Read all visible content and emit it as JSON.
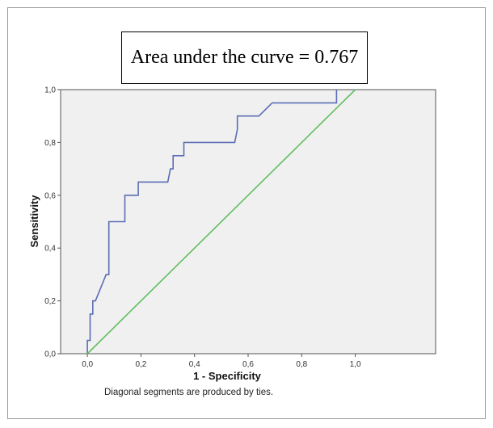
{
  "chart_data": {
    "type": "line",
    "annotation": "Area under the curve = 0.767",
    "xlabel": "1 - Specificity",
    "ylabel": "Sensitivity",
    "xlim": [
      -0.1,
      1.3
    ],
    "ylim": [
      0,
      1
    ],
    "xticks": [
      "0,0",
      "0,2",
      "0,4",
      "0,6",
      "0,8",
      "1,0"
    ],
    "yticks": [
      "0,0",
      "0,2",
      "0,4",
      "0,6",
      "0,8",
      "1,0"
    ],
    "footnote": "Diagonal segments are produced by ties.",
    "series": [
      {
        "color": "#5b6db5",
        "x": [
          0.0,
          0.0,
          0.01,
          0.01,
          0.02,
          0.02,
          0.03,
          0.03,
          0.05,
          0.07,
          0.08,
          0.08,
          0.14,
          0.14,
          0.19,
          0.19,
          0.3,
          0.31,
          0.32,
          0.32,
          0.36,
          0.36,
          0.55,
          0.56,
          0.56,
          0.64,
          0.69,
          0.69,
          0.91,
          0.93,
          0.93
        ],
        "y": [
          0.0,
          0.05,
          0.05,
          0.15,
          0.15,
          0.2,
          0.2,
          0.2,
          0.25,
          0.3,
          0.3,
          0.5,
          0.5,
          0.6,
          0.6,
          0.65,
          0.65,
          0.7,
          0.7,
          0.75,
          0.75,
          0.8,
          0.8,
          0.85,
          0.9,
          0.9,
          0.95,
          0.95,
          0.95,
          0.95,
          1.0
        ]
      },
      {
        "color": "#5fbf5f",
        "x": [
          0.0,
          1.0
        ],
        "y": [
          0.0,
          1.0
        ]
      }
    ]
  }
}
